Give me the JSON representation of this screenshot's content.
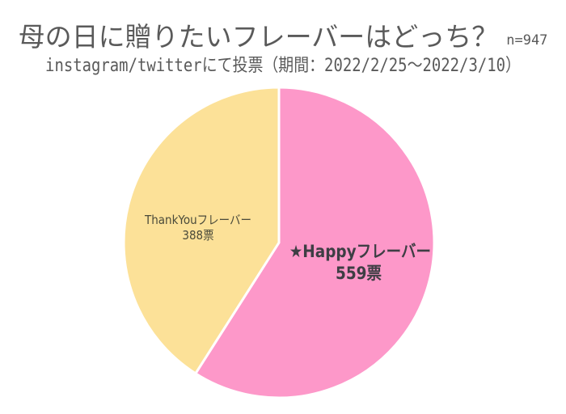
{
  "header": {
    "title": "母の日に贈りたいフレーバーはどっち？",
    "sample_size": "n=947",
    "subtitle": "instagram/twitterにて投票（期間：2022/2/25～2022/3/10）"
  },
  "labels": {
    "happy_name": "★Happyフレーバー",
    "happy_votes": "559票",
    "thanks_name": "ThankYouフレーバー",
    "thanks_votes": "388票"
  },
  "colors": {
    "happy": "#fd98c9",
    "thanks": "#fce198",
    "separator": "#ffffff"
  },
  "chart_data": {
    "type": "pie",
    "title": "母の日に贈りたいフレーバーはどっち？",
    "subtitle": "instagram/twitterにて投票（期間：2022/2/25～2022/3/10）",
    "annotation": "n=947",
    "categories": [
      "★Happyフレーバー",
      "ThankYouフレーバー"
    ],
    "values": [
      559,
      388
    ],
    "unit": "票",
    "colors": [
      "#fd98c9",
      "#fce198"
    ],
    "start_angle": "12 o'clock, clockwise",
    "legend": "none (labels inside slices)"
  }
}
